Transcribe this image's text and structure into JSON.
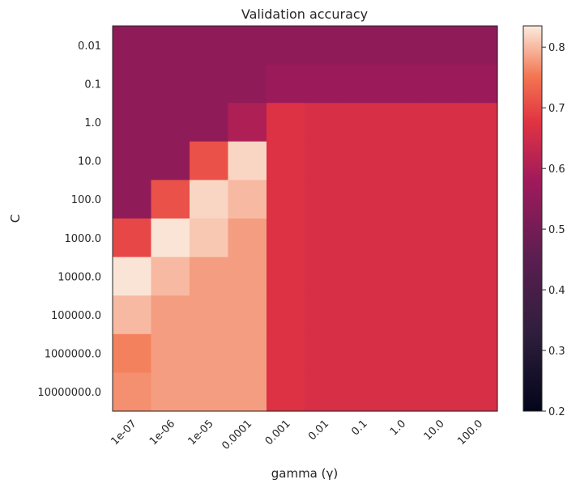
{
  "chart_data": {
    "type": "heatmap",
    "title": "Validation accuracy",
    "xlabel": "gamma (γ)",
    "ylabel": "C",
    "x_categories": [
      "1e-07",
      "1e-06",
      "1e-05",
      "0.0001",
      "0.001",
      "0.01",
      "0.1",
      "1.0",
      "10.0",
      "100.0"
    ],
    "y_categories": [
      "0.01",
      "0.1",
      "1.0",
      "10.0",
      "100.0",
      "1000.0",
      "10000.0",
      "100000.0",
      "1000000.0",
      "10000000.0"
    ],
    "values": [
      [
        0.55,
        0.55,
        0.55,
        0.55,
        0.55,
        0.55,
        0.55,
        0.55,
        0.55,
        0.55
      ],
      [
        0.55,
        0.55,
        0.55,
        0.55,
        0.57,
        0.57,
        0.57,
        0.57,
        0.57,
        0.57
      ],
      [
        0.55,
        0.55,
        0.55,
        0.6,
        0.67,
        0.66,
        0.66,
        0.66,
        0.66,
        0.66
      ],
      [
        0.55,
        0.55,
        0.71,
        0.82,
        0.67,
        0.66,
        0.66,
        0.66,
        0.66,
        0.66
      ],
      [
        0.55,
        0.71,
        0.82,
        0.8,
        0.67,
        0.66,
        0.66,
        0.66,
        0.66,
        0.66
      ],
      [
        0.7,
        0.83,
        0.81,
        0.78,
        0.67,
        0.66,
        0.66,
        0.66,
        0.66,
        0.66
      ],
      [
        0.83,
        0.8,
        0.78,
        0.78,
        0.67,
        0.66,
        0.66,
        0.66,
        0.66,
        0.66
      ],
      [
        0.8,
        0.78,
        0.78,
        0.78,
        0.67,
        0.66,
        0.66,
        0.66,
        0.66,
        0.66
      ],
      [
        0.76,
        0.78,
        0.78,
        0.78,
        0.67,
        0.66,
        0.66,
        0.66,
        0.66,
        0.66
      ],
      [
        0.77,
        0.78,
        0.78,
        0.78,
        0.67,
        0.66,
        0.66,
        0.66,
        0.66,
        0.66
      ]
    ],
    "colorbar": {
      "range": [
        0.2,
        0.835
      ],
      "ticks": [
        "0.2",
        "0.3",
        "0.4",
        "0.5",
        "0.6",
        "0.7",
        "0.8"
      ],
      "colormap": "rocket"
    },
    "grid": false
  }
}
